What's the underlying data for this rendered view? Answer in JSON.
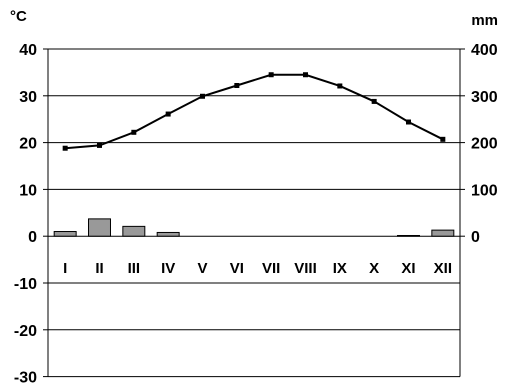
{
  "chart_data": {
    "type": "climate-diagram",
    "left_axis": {
      "unit_label": "°C",
      "ylim": [
        -30,
        40
      ],
      "ticks": [
        40,
        30,
        20,
        10,
        0,
        -10,
        -20,
        -30
      ],
      "tick_labels": [
        "40",
        "30",
        "20",
        "10",
        "0",
        "-10",
        "-20",
        "-30"
      ]
    },
    "right_axis": {
      "unit_label": "mm",
      "ylim": [
        0,
        400
      ],
      "ticks": [
        400,
        300,
        200,
        100,
        0
      ],
      "tick_labels": [
        "400",
        "300",
        "200",
        "100",
        "0"
      ]
    },
    "categories": [
      "I",
      "II",
      "III",
      "IV",
      "V",
      "VI",
      "VII",
      "VIII",
      "IX",
      "X",
      "XI",
      "XII"
    ],
    "series": [
      {
        "type": "line",
        "axis": "left",
        "values": [
          18.8,
          19.4,
          22.2,
          26.1,
          29.9,
          32.2,
          34.5,
          34.5,
          32.1,
          28.8,
          24.4,
          20.7
        ],
        "color": "#000000"
      },
      {
        "type": "bar",
        "axis": "right",
        "values": [
          10,
          37,
          21,
          8,
          0,
          0,
          0,
          0,
          0,
          0,
          1.5,
          13
        ],
        "color": "#999999"
      }
    ],
    "grid": true,
    "legend": "none"
  }
}
